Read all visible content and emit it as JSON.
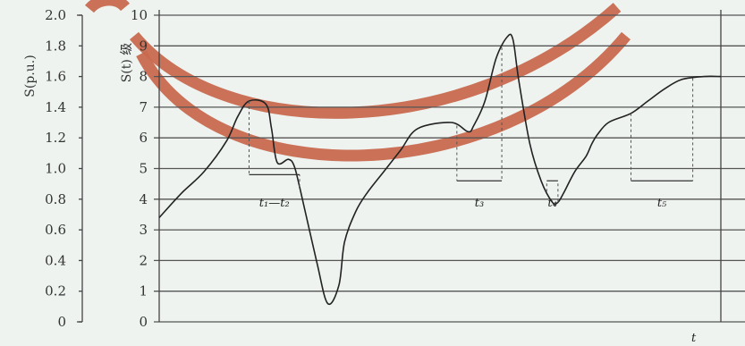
{
  "chart_data": {
    "type": "line",
    "title": "",
    "xlabel": "t",
    "ylabel_left": "S(p.u.)",
    "ylabel_right": "S(t) 级",
    "left_ticks": [
      "0",
      "0.2",
      "0.4",
      "0.6",
      "0.8",
      "1.0",
      "1.2",
      "1.4",
      "1.6",
      "1.8",
      "2.0"
    ],
    "right_ticks": [
      "0",
      "1",
      "2",
      "3",
      "4",
      "5",
      "6",
      "7",
      "8",
      "9",
      "10"
    ],
    "ylim": [
      0,
      10
    ],
    "grid": true,
    "series": [
      {
        "x": [
          0,
          4,
          8,
          12,
          14,
          16,
          19,
          20,
          21,
          23,
          24,
          25,
          28,
          30,
          32,
          33,
          35,
          37,
          40,
          43,
          46,
          52,
          55,
          56,
          58,
          60,
          62,
          63,
          64,
          66,
          68,
          70,
          71,
          72,
          74,
          76,
          77,
          78,
          80,
          84,
          87,
          90,
          93,
          97,
          100
        ],
        "y": [
          3.4,
          4.2,
          4.9,
          5.9,
          6.7,
          7.2,
          7.1,
          6.3,
          5.2,
          5.3,
          5.1,
          4.4,
          2.0,
          0.6,
          1.2,
          2.6,
          3.6,
          4.2,
          4.9,
          5.6,
          6.3,
          6.5,
          6.2,
          6.4,
          7.2,
          8.6,
          9.3,
          9.2,
          7.9,
          5.8,
          4.6,
          3.9,
          3.9,
          4.2,
          4.9,
          5.4,
          5.8,
          6.1,
          6.5,
          6.8,
          7.2,
          7.6,
          7.9,
          8.0,
          8.0
        ]
      }
    ],
    "annotations": [
      {
        "label": "t₁—t₂",
        "x_start": 16,
        "x_end": 25,
        "level": 4.8
      },
      {
        "label": "t₃",
        "x_start": 53,
        "x_end": 61,
        "level": 4.6
      },
      {
        "label": "t₄",
        "x_start": 69,
        "x_end": 71,
        "level": 4.6
      },
      {
        "label": "t₅",
        "x_start": 84,
        "x_end": 95,
        "level": 4.6
      }
    ]
  }
}
